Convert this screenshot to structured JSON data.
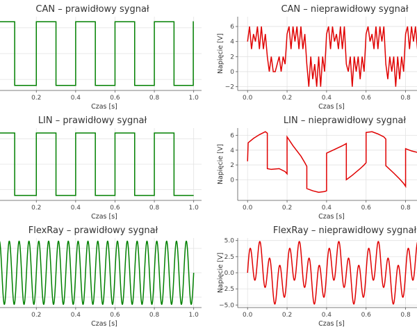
{
  "colors": {
    "correct": "#008000",
    "incorrect": "#e00000",
    "grid": "#e2e2e2",
    "axis": "#555555"
  },
  "chart_data": [
    {
      "id": "can-ok",
      "type": "line",
      "title": "CAN – prawidłowy sygnał",
      "xlabel": "Czas [s]",
      "ylabel": "",
      "xlim": [
        -0.02,
        1.04
      ],
      "ylim": [
        -0.4,
        5.4
      ],
      "xticks": [
        0.0,
        0.2,
        0.4,
        0.6,
        0.8,
        1.0
      ],
      "xtick_labels": [
        "0.0",
        "0.2",
        "0.4",
        "0.6",
        "0.8",
        "1.0"
      ],
      "yticks": [],
      "grid": true,
      "series": [
        {
          "color": "#008000",
          "x": [
            0,
            0.01,
            0.01,
            0.09,
            0.09,
            0.2,
            0.2,
            0.3,
            0.3,
            0.4,
            0.4,
            0.5,
            0.5,
            0.6,
            0.6,
            0.7,
            0.7,
            0.8,
            0.8,
            0.9,
            0.9,
            0.998,
            0.998,
            1.0
          ],
          "y": [
            5,
            5,
            5,
            5,
            0,
            0,
            5,
            5,
            0,
            0,
            5,
            5,
            0,
            0,
            5,
            5,
            0,
            0,
            5,
            5,
            0,
            0,
            5,
            5
          ]
        }
      ]
    },
    {
      "id": "can-bad",
      "type": "line",
      "title": "CAN – nieprawidłowy sygnał",
      "xlabel": "Czas [s]",
      "ylabel": "Napięcie [V]",
      "xlim": [
        -0.05,
        0.9
      ],
      "ylim": [
        -2.5,
        7.3
      ],
      "xticks": [
        0.0,
        0.2,
        0.4,
        0.6,
        0.8
      ],
      "xtick_labels": [
        "0.0",
        "0.2",
        "0.4",
        "0.6",
        "0.8"
      ],
      "yticks": [
        -2,
        0,
        2,
        4,
        6
      ],
      "ytick_labels": [
        "−2",
        "0",
        "2",
        "4",
        "6"
      ],
      "grid": true,
      "series": [
        {
          "color": "#e00000",
          "x": [
            0.0,
            0.01,
            0.02,
            0.03,
            0.04,
            0.05,
            0.06,
            0.07,
            0.08,
            0.09,
            0.1,
            0.11,
            0.12,
            0.13,
            0.14,
            0.15,
            0.16,
            0.17,
            0.18,
            0.19,
            0.2,
            0.21,
            0.22,
            0.23,
            0.24,
            0.25,
            0.26,
            0.27,
            0.28,
            0.29,
            0.3,
            0.31,
            0.32,
            0.33,
            0.34,
            0.35,
            0.36,
            0.37,
            0.38,
            0.39,
            0.4,
            0.41,
            0.42,
            0.43,
            0.44,
            0.45,
            0.46,
            0.47,
            0.48,
            0.49,
            0.5,
            0.51,
            0.52,
            0.53,
            0.54,
            0.55,
            0.56,
            0.57,
            0.58,
            0.59,
            0.6,
            0.61,
            0.62,
            0.63,
            0.64,
            0.65,
            0.66,
            0.67,
            0.68,
            0.69,
            0.7,
            0.71,
            0.72,
            0.73,
            0.74,
            0.75,
            0.76,
            0.77,
            0.78,
            0.79,
            0.8,
            0.81,
            0.82,
            0.83,
            0.84,
            0.85,
            0.86,
            0.87,
            0.88,
            0.89
          ],
          "y": [
            4,
            6,
            3,
            5,
            4,
            6,
            3,
            6,
            3,
            5,
            2,
            0,
            2,
            0,
            0,
            1,
            2,
            0,
            2,
            1,
            5,
            6,
            3,
            6,
            4,
            6,
            3,
            6,
            3,
            5,
            1,
            -2,
            2,
            -1,
            1,
            -2,
            2,
            -2,
            2,
            0,
            5,
            6,
            3,
            6,
            4,
            5,
            3,
            6,
            3,
            6,
            1,
            0,
            2,
            -2,
            2,
            0,
            2,
            -1,
            2,
            0,
            5,
            6,
            4,
            5,
            3,
            6,
            3,
            6,
            4,
            6,
            1,
            -1,
            2,
            0,
            2,
            -2,
            2,
            -1,
            2,
            0,
            5,
            6,
            3,
            6,
            4,
            6,
            3,
            6,
            3,
            5
          ]
        }
      ]
    },
    {
      "id": "lin-ok",
      "type": "line",
      "title": "LIN – prawidłowy sygnał",
      "xlabel": "Czas [s]",
      "ylabel": "",
      "xlim": [
        -0.02,
        1.04
      ],
      "ylim": [
        -0.4,
        5.4
      ],
      "xticks": [
        0.0,
        0.2,
        0.4,
        0.6,
        0.8,
        1.0
      ],
      "xtick_labels": [
        "0.0",
        "0.2",
        "0.4",
        "0.6",
        "0.8",
        "1.0"
      ],
      "yticks": [],
      "grid": true,
      "series": [
        {
          "color": "#008000",
          "x": [
            0,
            0.09,
            0.09,
            0.2,
            0.2,
            0.3,
            0.3,
            0.4,
            0.4,
            0.5,
            0.5,
            0.6,
            0.6,
            0.7,
            0.7,
            0.8,
            0.8,
            0.9,
            0.9,
            1.0
          ],
          "y": [
            5,
            5,
            0,
            0,
            5,
            5,
            0,
            0,
            5,
            5,
            0,
            0,
            5,
            5,
            0,
            0,
            5,
            5,
            0,
            0
          ]
        }
      ]
    },
    {
      "id": "lin-bad",
      "type": "line",
      "title": "LIN – nieprawidłowy sygnał",
      "xlabel": "Czas [s]",
      "ylabel": "Napięcie [V]",
      "xlim": [
        -0.05,
        0.9
      ],
      "ylim": [
        -2.8,
        7.0
      ],
      "xticks": [
        0.0,
        0.2,
        0.4,
        0.6,
        0.8
      ],
      "xtick_labels": [
        "0.0",
        "0.2",
        "0.4",
        "0.6",
        "0.8"
      ],
      "yticks": [
        0,
        2,
        4,
        6
      ],
      "ytick_labels": [
        "0",
        "2",
        "4",
        "6"
      ],
      "grid": true,
      "series": [
        {
          "color": "#e00000",
          "x": [
            0.0,
            0.003,
            0.03,
            0.06,
            0.09,
            0.1,
            0.1,
            0.12,
            0.16,
            0.19,
            0.2,
            0.2,
            0.23,
            0.27,
            0.29,
            0.3,
            0.3,
            0.33,
            0.36,
            0.39,
            0.4,
            0.4,
            0.44,
            0.48,
            0.5,
            0.5,
            0.53,
            0.57,
            0.59,
            0.6,
            0.6,
            0.63,
            0.66,
            0.69,
            0.7,
            0.7,
            0.74,
            0.77,
            0.79,
            0.8,
            0.8,
            0.83,
            0.86,
            0.89
          ],
          "y": [
            2.5,
            5.0,
            5.6,
            6.1,
            6.5,
            6.3,
            1.5,
            1.4,
            1.5,
            1.1,
            0.8,
            5.8,
            4.6,
            3.2,
            2.3,
            1.8,
            -1.2,
            -1.5,
            -1.7,
            -1.6,
            -1.5,
            3.6,
            4.1,
            4.6,
            4.9,
            0.0,
            0.6,
            1.5,
            2.0,
            2.3,
            6.4,
            6.5,
            6.2,
            5.8,
            5.5,
            1.9,
            0.9,
            0.1,
            -0.5,
            -0.9,
            4.2,
            3.9,
            3.7,
            3.6
          ]
        }
      ]
    },
    {
      "id": "flexray-ok",
      "type": "line",
      "title": "FlexRay – prawidłowy sygnał",
      "xlabel": "Czas [s]",
      "ylabel": "",
      "xlim": [
        -0.02,
        1.04
      ],
      "ylim": [
        -1.1,
        1.1
      ],
      "xticks": [
        0.0,
        0.2,
        0.4,
        0.6,
        0.8,
        1.0
      ],
      "xtick_labels": [
        "0.0",
        "0.2",
        "0.4",
        "0.6",
        "0.8",
        "1.0"
      ],
      "yticks": [],
      "grid": true,
      "signal": {
        "kind": "sine",
        "frequency_hz": 20,
        "amplitude": 1
      },
      "series": [
        {
          "color": "#008000"
        }
      ]
    },
    {
      "id": "flexray-bad",
      "type": "line",
      "title": "FlexRay – nieprawidłowy sygnał",
      "xlabel": "Czas [s]",
      "ylabel": "Napięcie [V]",
      "xlim": [
        -0.05,
        0.9
      ],
      "ylim": [
        -5.4,
        5.4
      ],
      "xticks": [
        0.0,
        0.2,
        0.4,
        0.6,
        0.8
      ],
      "xtick_labels": [
        "0.0",
        "0.2",
        "0.4",
        "0.6",
        "0.8"
      ],
      "yticks": [
        -5.0,
        -2.5,
        0.0,
        2.5,
        5.0
      ],
      "ytick_labels": [
        "−5.0",
        "−2.5",
        "0.0",
        "2.5",
        "5.0"
      ],
      "grid": true,
      "signal": {
        "kind": "sine-sum",
        "components": [
          {
            "frequency_hz": 20,
            "amplitude": 3
          },
          {
            "frequency_hz": 5,
            "amplitude": 2
          }
        ]
      },
      "series": [
        {
          "color": "#e00000"
        }
      ]
    }
  ]
}
